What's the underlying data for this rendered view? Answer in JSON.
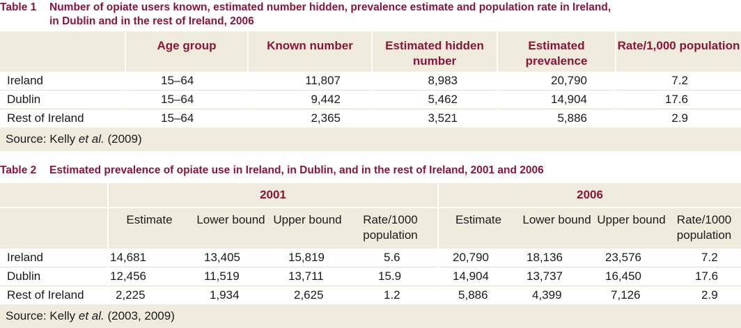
{
  "table1": {
    "number": "Table 1",
    "title_line1": "Number of opiate users known, estimated number hidden, prevalence estimate and population rate in Ireland,",
    "title_line2": "in Dublin and in the rest of Ireland, 2006",
    "headers": [
      "Age group",
      "Known number",
      "Estimated hidden number",
      "Estimated prevalence",
      "Rate/1,000 population"
    ],
    "rows": [
      {
        "label": "Ireland",
        "age": "15–64",
        "known": "11,807",
        "hidden": "8,983",
        "prevalence": "20,790",
        "rate": "7.2"
      },
      {
        "label": "Dublin",
        "age": "15–64",
        "known": "9,442",
        "hidden": "5,462",
        "prevalence": "14,904",
        "rate": "17.6"
      },
      {
        "label": "Rest of Ireland",
        "age": "15–64",
        "known": "2,365",
        "hidden": "3,521",
        "prevalence": "5,886",
        "rate": "2.9"
      }
    ],
    "source_prefix": "Source: Kelly ",
    "source_italic": "et al.",
    "source_suffix": " (2009)"
  },
  "table2": {
    "number": "Table 2",
    "title": "Estimated prevalence of opiate use in Ireland, in Dublin, and in the rest of Ireland, 2001 and 2006",
    "years": [
      "2001",
      "2006"
    ],
    "subheaders": [
      "Estimate",
      "Lower bound",
      "Upper bound",
      "Rate/1000 population",
      "Estimate",
      "Lower bound",
      "Upper bound",
      "Rate/1000 population"
    ],
    "rows": [
      {
        "label": "Ireland",
        "values": [
          "14,681",
          "13,405",
          "15,819",
          "5.6",
          "20,790",
          "18,136",
          "23,576",
          "7.2"
        ]
      },
      {
        "label": "Dublin",
        "values": [
          "12,456",
          "11,519",
          "13,711",
          "15.9",
          "14,904",
          "13,737",
          "16,450",
          "17.6"
        ]
      },
      {
        "label": "Rest of Ireland",
        "values": [
          "2,225",
          "1,934",
          "2,625",
          "1.2",
          "5,886",
          "4,399",
          "7,126",
          "2.9"
        ]
      }
    ],
    "source_prefix": "Source: Kelly ",
    "source_italic": "et al.",
    "source_suffix": " (2003, 2009)"
  },
  "colors": {
    "accent": "#8a1538",
    "shade": "#efebdd"
  }
}
